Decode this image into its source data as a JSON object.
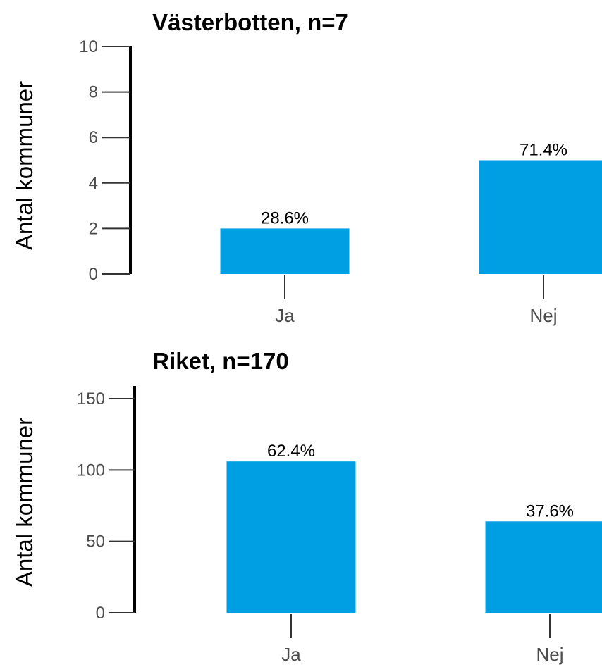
{
  "chart_data": [
    {
      "type": "bar",
      "title": "Västerbotten, n=7",
      "ylabel": "Antal kommuner",
      "xlabel": "",
      "categories": [
        "Ja",
        "Nej"
      ],
      "values": [
        2,
        5
      ],
      "data_labels": [
        "28.6%",
        "71.4%"
      ],
      "ylim": [
        0,
        10
      ],
      "yticks": [
        0,
        2,
        4,
        6,
        8,
        10
      ],
      "ytick_labels": [
        "0",
        "2",
        "4",
        "6",
        "8",
        "10"
      ],
      "grid": false,
      "bar_color": "#009fe3"
    },
    {
      "type": "bar",
      "title": "Riket, n=170",
      "ylabel": "Antal kommuner",
      "xlabel": "",
      "categories": [
        "Ja",
        "Nej"
      ],
      "values": [
        106,
        64
      ],
      "data_labels": [
        "62.4%",
        "37.6%"
      ],
      "ylim": [
        0,
        150
      ],
      "yticks": [
        0,
        50,
        100,
        150
      ],
      "ytick_labels": [
        "0",
        "50",
        "100",
        "150"
      ],
      "grid": false,
      "bar_color": "#009fe3"
    }
  ]
}
